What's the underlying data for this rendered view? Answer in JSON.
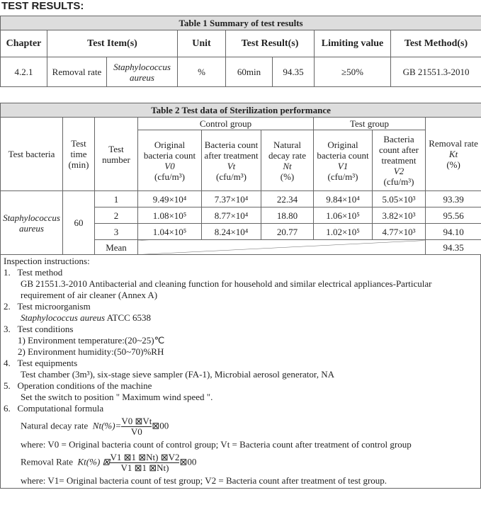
{
  "title": "TEST RESULTS:",
  "table1": {
    "caption": "Table 1 Summary of test results",
    "headers": [
      "Chapter",
      "Test Item(s)",
      "Unit",
      "Test Result(s)",
      "Limiting value",
      "Test Method(s)"
    ],
    "row": {
      "chapter": "4.2.1",
      "item": "Removal rate",
      "organism": "Staphylococcus aureus",
      "unit": "%",
      "time": "60min",
      "result": "94.35",
      "limit": "≥50%",
      "method": "GB 21551.3-2010"
    }
  },
  "table2": {
    "caption": "Table 2 Test data of Sterilization performance",
    "headers": {
      "bacteria": "Test bacteria",
      "time": "Test time (min)",
      "number": "Test number",
      "control": "Control group",
      "test": "Test group",
      "removal": "Removal rate",
      "removal_sym": "Kt",
      "removal_unit": "(%)",
      "v0": "Original bacteria count",
      "v0_sym": "V0",
      "vt": "Bacteria count after treatment",
      "vt_sym": "Vt",
      "nt": "Natural decay rate",
      "nt_sym": "Nt",
      "v1": "Original bacteria count",
      "v1_sym": "V1",
      "v2": "Bacteria count after treatment",
      "v2_sym": "V2",
      "cfu": "(cfu/m³)",
      "pct": "(%)"
    },
    "bacteria": "Staphylococcus aureus",
    "time": "60",
    "rows": [
      {
        "n": "1",
        "v0": "9.49×10⁴",
        "vt": "7.37×10⁴",
        "nt": "22.34",
        "v1": "9.84×10⁴",
        "v2": "5.05×10³",
        "k": "93.39"
      },
      {
        "n": "2",
        "v0": "1.08×10⁵",
        "vt": "8.77×10⁴",
        "nt": "18.80",
        "v1": "1.06×10⁵",
        "v2": "3.82×10³",
        "k": "95.56"
      },
      {
        "n": "3",
        "v0": "1.04×10⁵",
        "vt": "8.24×10⁴",
        "nt": "20.77",
        "v1": "1.02×10⁵",
        "v2": "4.77×10³",
        "k": "94.10"
      }
    ],
    "mean_label": "Mean",
    "mean": "94.35"
  },
  "instructions": {
    "heading": "Inspection instructions:",
    "items": [
      {
        "n": "1.",
        "title": "Test method",
        "lines": [
          "GB 21551.3-2010 Antibacterial and cleaning function for household and similar electrical appliances-Particular",
          "requirement of air cleaner (Annex A)"
        ]
      },
      {
        "n": "2.",
        "title": "Test microorganism",
        "organism": "Staphylococcus aureus",
        "strain": " ATCC 6538"
      },
      {
        "n": "3.",
        "title": "Test conditions",
        "lines": [
          "1) Environment temperature:(20~25)℃",
          "2) Environment humidity:(50~70)%RH"
        ]
      },
      {
        "n": "4.",
        "title": "Test equipments",
        "lines": [
          "Test chamber (3m³), six-stage sieve sampler (FA-1), Microbial aerosol generator, NA"
        ]
      },
      {
        "n": "5.",
        "title": "Operation conditions of the machine",
        "lines": [
          "Set the switch to position \" Maximum wind speed \"."
        ]
      },
      {
        "n": "6.",
        "title": "Computational formula"
      }
    ],
    "f1_label": "Natural decay rate",
    "f1_lhs": "Nt(%)=",
    "f1_num": "V0 ⊠Vt",
    "f1_den": "V0",
    "f1_tail": "⊠00",
    "where1": "where:  V0  = Original bacteria count of control group;  Vt  = Bacteria count after treatment of control group",
    "f2_label": "Removal Rate",
    "f2_lhs": "Kt(%) ⊠",
    "f2_num": "V1 ⊠1 ⊠Nt) ⊠V2",
    "f2_den": "V1 ⊠1 ⊠Nt)",
    "f2_tail": "⊠00",
    "where2": "where:  V1= Original bacteria count of test group;  V2 = Bacteria count after treatment of test group."
  }
}
